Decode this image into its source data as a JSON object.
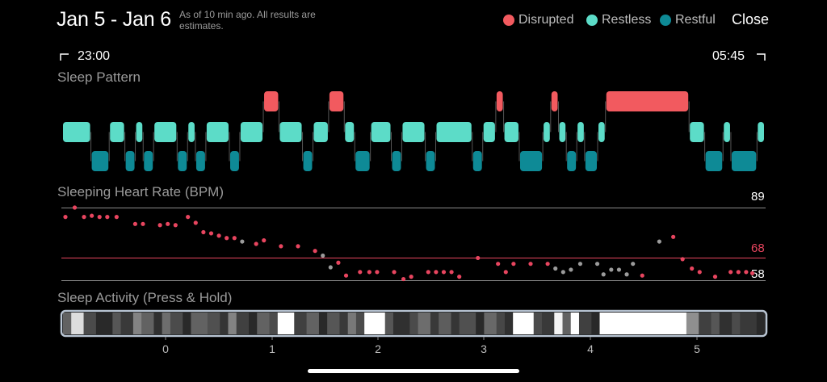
{
  "header": {
    "title": "Jan 5 - Jan 6",
    "subtitle": "As of 10 min ago. All results are estimates.",
    "close_label": "Close"
  },
  "legend": [
    {
      "label": "Disrupted",
      "color": "#F25A5F"
    },
    {
      "label": "Restless",
      "color": "#5CDCC8"
    },
    {
      "label": "Restful",
      "color": "#0E8A96"
    }
  ],
  "time_range": {
    "start": "23:00",
    "end": "05:45"
  },
  "sleep_pattern": {
    "title": "Sleep Pattern",
    "stages": [
      "restless",
      "restful",
      "restless",
      "restful",
      "restless",
      "restful",
      "restless",
      "restful",
      "restless",
      "restful",
      "restless",
      "restful",
      "restless",
      "disrupted",
      "restless",
      "restful",
      "restless",
      "disrupted",
      "restless",
      "restful",
      "restless",
      "restful",
      "restless",
      "restful",
      "restless",
      "restful",
      "restless",
      "disrupted",
      "restless",
      "restful",
      "restless",
      "disrupted",
      "restless",
      "restful",
      "restless",
      "restful",
      "restless",
      "disrupted",
      "restless",
      "restful",
      "restless",
      "restful",
      "restless"
    ],
    "durations_min": [
      11,
      7,
      6,
      4,
      3,
      4,
      9,
      4,
      3,
      4,
      9,
      4,
      9,
      6,
      9,
      4,
      6,
      6,
      4,
      6,
      8,
      4,
      9,
      4,
      14,
      4,
      5,
      3,
      6,
      9,
      3,
      3,
      3,
      4,
      3,
      5,
      3,
      32,
      6,
      7,
      3,
      10,
      3
    ]
  },
  "heart_rate": {
    "title": "Sleeping Heart Rate (BPM)",
    "max": 89,
    "avg": 68,
    "min": 58,
    "points": [
      {
        "x": 0,
        "y": 85,
        "c": "r"
      },
      {
        "x": 3,
        "y": 89,
        "c": "r"
      },
      {
        "x": 6,
        "y": 85,
        "c": "r"
      },
      {
        "x": 8.5,
        "y": 85.5,
        "c": "r"
      },
      {
        "x": 11,
        "y": 85,
        "c": "r"
      },
      {
        "x": 13.5,
        "y": 85,
        "c": "r"
      },
      {
        "x": 16.5,
        "y": 85,
        "c": "r"
      },
      {
        "x": 22.5,
        "y": 82,
        "c": "r"
      },
      {
        "x": 25,
        "y": 82,
        "c": "r"
      },
      {
        "x": 30.5,
        "y": 81.5,
        "c": "r"
      },
      {
        "x": 33,
        "y": 82,
        "c": "r"
      },
      {
        "x": 35.5,
        "y": 81.5,
        "c": "r"
      },
      {
        "x": 39.5,
        "y": 85,
        "c": "r"
      },
      {
        "x": 42,
        "y": 82.5,
        "c": "r"
      },
      {
        "x": 44.5,
        "y": 78.5,
        "c": "r"
      },
      {
        "x": 47,
        "y": 78,
        "c": "r"
      },
      {
        "x": 49.5,
        "y": 77,
        "c": "r"
      },
      {
        "x": 52,
        "y": 76,
        "c": "r"
      },
      {
        "x": 54.5,
        "y": 76,
        "c": "r"
      },
      {
        "x": 57,
        "y": 74.5,
        "c": "g"
      },
      {
        "x": 61.5,
        "y": 73.5,
        "c": "r"
      },
      {
        "x": 64,
        "y": 75,
        "c": "r"
      },
      {
        "x": 69.5,
        "y": 72.5,
        "c": "r"
      },
      {
        "x": 75,
        "y": 72.5,
        "c": "r"
      },
      {
        "x": 80.5,
        "y": 70.5,
        "c": "r"
      },
      {
        "x": 83,
        "y": 68.5,
        "c": "g"
      },
      {
        "x": 85.5,
        "y": 63.5,
        "c": "g"
      },
      {
        "x": 88,
        "y": 65.5,
        "c": "r"
      },
      {
        "x": 90.5,
        "y": 60,
        "c": "r"
      },
      {
        "x": 95,
        "y": 61.5,
        "c": "r"
      },
      {
        "x": 98,
        "y": 61.5,
        "c": "r"
      },
      {
        "x": 100.5,
        "y": 61.5,
        "c": "r"
      },
      {
        "x": 106,
        "y": 61.5,
        "c": "r"
      },
      {
        "x": 109,
        "y": 58.5,
        "c": "r"
      },
      {
        "x": 111.5,
        "y": 59.5,
        "c": "r"
      },
      {
        "x": 117,
        "y": 61.5,
        "c": "r"
      },
      {
        "x": 119.5,
        "y": 61.5,
        "c": "r"
      },
      {
        "x": 122,
        "y": 61.5,
        "c": "r"
      },
      {
        "x": 124.5,
        "y": 61.5,
        "c": "r"
      },
      {
        "x": 127,
        "y": 59.5,
        "c": "r"
      },
      {
        "x": 133,
        "y": 67.5,
        "c": "r"
      },
      {
        "x": 139.5,
        "y": 65,
        "c": "r"
      },
      {
        "x": 142,
        "y": 61.5,
        "c": "r"
      },
      {
        "x": 144.5,
        "y": 65,
        "c": "r"
      },
      {
        "x": 150,
        "y": 65,
        "c": "r"
      },
      {
        "x": 155.5,
        "y": 65,
        "c": "r"
      },
      {
        "x": 158,
        "y": 63,
        "c": "g"
      },
      {
        "x": 160.5,
        "y": 61.5,
        "c": "g"
      },
      {
        "x": 163,
        "y": 62.5,
        "c": "g"
      },
      {
        "x": 166,
        "y": 65,
        "c": "g"
      },
      {
        "x": 171.5,
        "y": 65,
        "c": "g"
      },
      {
        "x": 173.5,
        "y": 60.5,
        "c": "g"
      },
      {
        "x": 176,
        "y": 62.5,
        "c": "g"
      },
      {
        "x": 178.5,
        "y": 62.5,
        "c": "g"
      },
      {
        "x": 181,
        "y": 60.5,
        "c": "g"
      },
      {
        "x": 183,
        "y": 65,
        "c": "g"
      },
      {
        "x": 186,
        "y": 60,
        "c": "r"
      },
      {
        "x": 191.5,
        "y": 74.5,
        "c": "g"
      },
      {
        "x": 196,
        "y": 76.5,
        "c": "r"
      },
      {
        "x": 199,
        "y": 67,
        "c": "r"
      },
      {
        "x": 202,
        "y": 63,
        "c": "r"
      },
      {
        "x": 204.5,
        "y": 61.5,
        "c": "r"
      },
      {
        "x": 209.5,
        "y": 59.5,
        "c": "r"
      },
      {
        "x": 214.5,
        "y": 61.5,
        "c": "r"
      },
      {
        "x": 217,
        "y": 61.5,
        "c": "r"
      },
      {
        "x": 219.5,
        "y": 61.5,
        "c": "r"
      },
      {
        "x": 221.5,
        "y": 61,
        "c": "r"
      }
    ]
  },
  "sleep_activity": {
    "title": "Sleep Activity (Press & Hold)",
    "segments": [
      {
        "v": 0.3,
        "w": 1
      },
      {
        "v": 0.85,
        "w": 1.5
      },
      {
        "v": 0.2,
        "w": 1.5
      },
      {
        "v": 0.05,
        "w": 2
      },
      {
        "v": 0.25,
        "w": 1
      },
      {
        "v": 0.12,
        "w": 1.5
      },
      {
        "v": 0.45,
        "w": 1
      },
      {
        "v": 0.3,
        "w": 1.5
      },
      {
        "v": 0.08,
        "w": 1
      },
      {
        "v": 0.35,
        "w": 1
      },
      {
        "v": 0.2,
        "w": 1.5
      },
      {
        "v": 0.05,
        "w": 1
      },
      {
        "v": 0.3,
        "w": 2
      },
      {
        "v": 0.22,
        "w": 1.5
      },
      {
        "v": 0.1,
        "w": 1
      },
      {
        "v": 0.45,
        "w": 1
      },
      {
        "v": 0.15,
        "w": 1.5
      },
      {
        "v": 0.05,
        "w": 1
      },
      {
        "v": 0.3,
        "w": 1.5
      },
      {
        "v": 0.2,
        "w": 1
      },
      {
        "v": 1.0,
        "w": 2
      },
      {
        "v": 0.15,
        "w": 1.5
      },
      {
        "v": 0.3,
        "w": 1.5
      },
      {
        "v": 0.05,
        "w": 1
      },
      {
        "v": 0.25,
        "w": 1.5
      },
      {
        "v": 0.12,
        "w": 1
      },
      {
        "v": 0.4,
        "w": 1
      },
      {
        "v": 0.2,
        "w": 1
      },
      {
        "v": 1.0,
        "w": 2.5
      },
      {
        "v": 0.25,
        "w": 1
      },
      {
        "v": 0.08,
        "w": 2
      },
      {
        "v": 0.2,
        "w": 1
      },
      {
        "v": 0.35,
        "w": 1.5
      },
      {
        "v": 0.12,
        "w": 1
      },
      {
        "v": 0.28,
        "w": 1.5
      },
      {
        "v": 0.1,
        "w": 1
      },
      {
        "v": 0.22,
        "w": 2
      },
      {
        "v": 0.05,
        "w": 1
      },
      {
        "v": 0.33,
        "w": 1.5
      },
      {
        "v": 0.18,
        "w": 1
      },
      {
        "v": 0.08,
        "w": 1
      },
      {
        "v": 1.0,
        "w": 2.5
      },
      {
        "v": 0.2,
        "w": 1
      },
      {
        "v": 0.12,
        "w": 1.5
      },
      {
        "v": 0.95,
        "w": 1
      },
      {
        "v": 0.3,
        "w": 1
      },
      {
        "v": 1.0,
        "w": 1
      },
      {
        "v": 0.15,
        "w": 1.5
      },
      {
        "v": 0.05,
        "w": 1
      },
      {
        "v": 1.0,
        "w": 10.5
      },
      {
        "v": 0.5,
        "w": 1.5
      },
      {
        "v": 0.15,
        "w": 1.5
      },
      {
        "v": 0.25,
        "w": 1
      },
      {
        "v": 0.08,
        "w": 1.5
      },
      {
        "v": 0.2,
        "w": 1
      },
      {
        "v": 0.12,
        "w": 2
      },
      {
        "v": 0.05,
        "w": 1
      }
    ],
    "ticks": [
      "0",
      "1",
      "2",
      "3",
      "4",
      "5"
    ]
  },
  "colors": {
    "disrupted": "#F25A5F",
    "restless": "#5CDCC8",
    "restful": "#0E8A96",
    "hr_red": "#E8455F",
    "hr_gray": "#9B9B9B"
  }
}
